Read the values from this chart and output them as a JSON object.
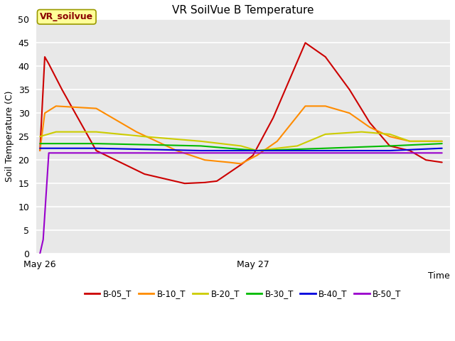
{
  "title": "VR SoilVue B Temperature",
  "xlabel": "Time",
  "ylabel": "Soil Temperature (C)",
  "ylim": [
    0,
    50
  ],
  "yticks": [
    0,
    5,
    10,
    15,
    20,
    25,
    30,
    35,
    40,
    45,
    50
  ],
  "fig_bg_color": "#ffffff",
  "plot_bg_color": "#e8e8e8",
  "annotation_text": "VR_soilvue",
  "annotation_color": "#8b0000",
  "annotation_bg": "#ffff99",
  "annotation_edge": "#999900",
  "x_tick_labels": [
    "May 26",
    "May 27"
  ],
  "grid_color": "#ffffff",
  "lines": {
    "B-05_T": {
      "color": "#cc0000",
      "points_x": [
        0.0,
        0.012,
        0.022,
        0.055,
        0.14,
        0.26,
        0.36,
        0.41,
        0.44,
        0.5,
        0.53,
        0.58,
        0.66,
        0.71,
        0.77,
        0.82,
        0.87,
        0.92,
        0.96,
        1.0
      ],
      "points_y": [
        22,
        42,
        40.5,
        35,
        22,
        17,
        15,
        15.2,
        15.5,
        19,
        21,
        29,
        45,
        42,
        35,
        28,
        23,
        22,
        20,
        19.5
      ]
    },
    "B-10_T": {
      "color": "#ff8c00",
      "points_x": [
        0.0,
        0.012,
        0.04,
        0.14,
        0.24,
        0.34,
        0.41,
        0.47,
        0.5,
        0.54,
        0.59,
        0.66,
        0.71,
        0.77,
        0.82,
        0.87,
        0.92,
        1.0
      ],
      "points_y": [
        22,
        30,
        31.5,
        31,
        26,
        22,
        20,
        19.5,
        19.2,
        21,
        24,
        31.5,
        31.5,
        30,
        27,
        25,
        24,
        24
      ]
    },
    "B-20_T": {
      "color": "#cccc00",
      "points_x": [
        0.0,
        0.04,
        0.14,
        0.26,
        0.4,
        0.5,
        0.54,
        0.64,
        0.71,
        0.8,
        0.87,
        0.92,
        1.0
      ],
      "points_y": [
        25,
        26,
        26,
        25,
        24,
        23,
        22,
        23,
        25.5,
        26,
        25.5,
        24,
        24
      ]
    },
    "B-30_T": {
      "color": "#00bb00",
      "points_x": [
        0.0,
        0.14,
        0.4,
        0.54,
        0.71,
        0.87,
        1.0
      ],
      "points_y": [
        23.5,
        23.5,
        23,
        22,
        22.5,
        23,
        23.5
      ]
    },
    "B-40_T": {
      "color": "#0000dd",
      "points_x": [
        0.0,
        0.14,
        0.4,
        0.54,
        0.71,
        0.87,
        1.0
      ],
      "points_y": [
        22.5,
        22.5,
        22,
        22,
        22,
        22,
        22.5
      ]
    },
    "B-50_T": {
      "color": "#9900cc",
      "points_x": [
        0.0,
        0.008,
        0.022,
        0.14,
        0.4,
        0.54,
        0.71,
        0.87,
        1.0
      ],
      "points_y": [
        0,
        3,
        21.5,
        21.5,
        21.5,
        21.5,
        21.5,
        21.5,
        21.5
      ]
    }
  },
  "line_order": [
    "B-05_T",
    "B-10_T",
    "B-20_T",
    "B-30_T",
    "B-40_T",
    "B-50_T"
  ]
}
